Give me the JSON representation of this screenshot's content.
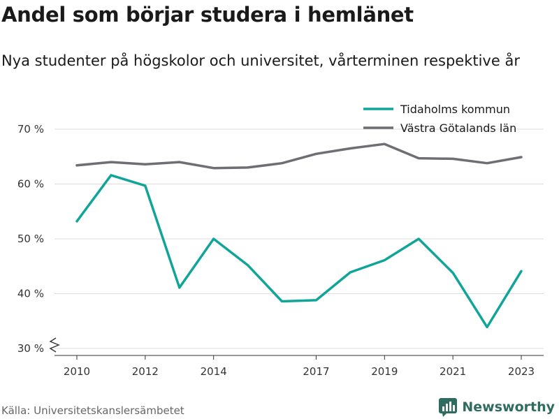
{
  "header": {
    "title": "Andel som börjar studera i hemlänet",
    "subtitle": "Nya studenter på högskolor och universitet, vårterminen respektive år"
  },
  "footer": {
    "source": "Källa: Universitetskanslersämbetet",
    "brand": "Newsworthy"
  },
  "chart_data": {
    "type": "line",
    "x": [
      2010,
      2011,
      2012,
      2013,
      2014,
      2015,
      2016,
      2017,
      2018,
      2019,
      2020,
      2021,
      2022,
      2023
    ],
    "x_tick_values": [
      2010,
      2012,
      2014,
      2017,
      2019,
      2021,
      2023
    ],
    "x_tick_labels": [
      "2010",
      "2012",
      "2014",
      "2017",
      "2019",
      "2021",
      "2023"
    ],
    "y_tick_values": [
      30,
      40,
      50,
      60,
      70
    ],
    "y_tick_labels": [
      "30 %",
      "40 %",
      "50 %",
      "60 %",
      "70 %"
    ],
    "ylim": [
      30,
      70
    ],
    "y_axis_break": true,
    "grid": "horizontal",
    "legend_position": "top-right",
    "series": [
      {
        "name": "Tidaholms kommun",
        "color": "#11a59a",
        "values": [
          53.2,
          61.6,
          59.7,
          41.1,
          50.0,
          45.2,
          38.6,
          38.8,
          43.9,
          46.1,
          50.0,
          43.8,
          33.9,
          44.1
        ]
      },
      {
        "name": "Västra Götalands län",
        "color": "#6e6e74",
        "values": [
          63.4,
          64.0,
          63.6,
          64.0,
          62.9,
          63.0,
          63.8,
          65.5,
          66.5,
          67.3,
          64.7,
          64.6,
          63.8,
          64.9
        ]
      }
    ]
  }
}
